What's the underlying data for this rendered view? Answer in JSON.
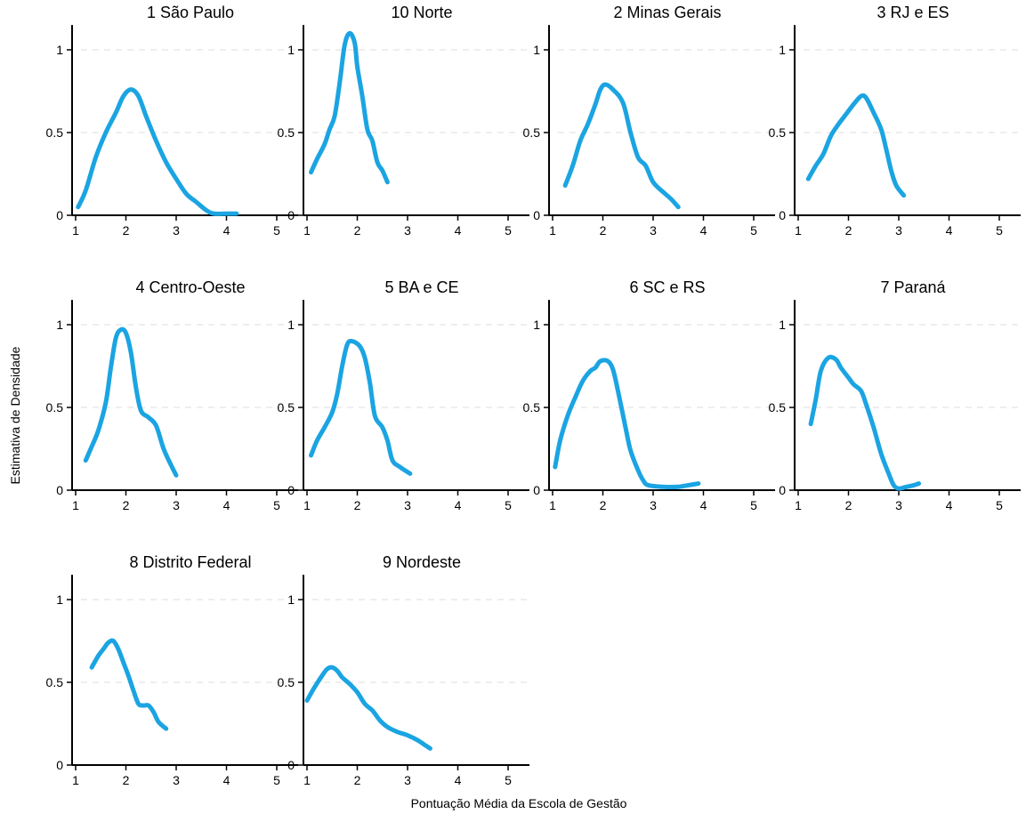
{
  "chart_data": {
    "type": "line",
    "title": "",
    "xlabel": "Pontuação Média da Escola de Gestão",
    "ylabel": "Estimativa de Densidade",
    "xlim": [
      1,
      5
    ],
    "ylim": [
      0,
      1.15
    ],
    "x_ticks": [
      "1",
      "2",
      "3",
      "4",
      "5"
    ],
    "y_ticks": [
      {
        "value": 0,
        "label": "0"
      },
      {
        "value": 0.5,
        "label": "0.5"
      },
      {
        "value": 1,
        "label": "1"
      }
    ],
    "grid": "horizontal dashed at 0.5 and 1",
    "line_color": "#1ba4e2",
    "layout": "facet grid, 4 columns, 3 rows",
    "panels": [
      {
        "title": "1 São Paulo",
        "points": [
          [
            1.05,
            0.05
          ],
          [
            1.2,
            0.15
          ],
          [
            1.4,
            0.35
          ],
          [
            1.6,
            0.5
          ],
          [
            1.8,
            0.62
          ],
          [
            1.95,
            0.72
          ],
          [
            2.1,
            0.76
          ],
          [
            2.25,
            0.72
          ],
          [
            2.4,
            0.6
          ],
          [
            2.6,
            0.45
          ],
          [
            2.8,
            0.32
          ],
          [
            3.0,
            0.22
          ],
          [
            3.2,
            0.13
          ],
          [
            3.4,
            0.08
          ],
          [
            3.6,
            0.03
          ],
          [
            3.75,
            0.01
          ],
          [
            4.0,
            0.01
          ],
          [
            4.2,
            0.01
          ]
        ]
      },
      {
        "title": "10 Norte",
        "points": [
          [
            1.08,
            0.26
          ],
          [
            1.2,
            0.34
          ],
          [
            1.35,
            0.43
          ],
          [
            1.45,
            0.52
          ],
          [
            1.55,
            0.6
          ],
          [
            1.65,
            0.8
          ],
          [
            1.75,
            1.03
          ],
          [
            1.85,
            1.1
          ],
          [
            1.95,
            1.04
          ],
          [
            2.0,
            0.9
          ],
          [
            2.1,
            0.72
          ],
          [
            2.2,
            0.52
          ],
          [
            2.3,
            0.45
          ],
          [
            2.4,
            0.32
          ],
          [
            2.5,
            0.27
          ],
          [
            2.6,
            0.2
          ]
        ]
      },
      {
        "title": "2 Minas Gerais",
        "points": [
          [
            1.25,
            0.18
          ],
          [
            1.4,
            0.3
          ],
          [
            1.55,
            0.45
          ],
          [
            1.7,
            0.55
          ],
          [
            1.85,
            0.67
          ],
          [
            1.95,
            0.76
          ],
          [
            2.05,
            0.79
          ],
          [
            2.2,
            0.76
          ],
          [
            2.4,
            0.68
          ],
          [
            2.55,
            0.5
          ],
          [
            2.7,
            0.35
          ],
          [
            2.85,
            0.3
          ],
          [
            3.0,
            0.2
          ],
          [
            3.2,
            0.14
          ],
          [
            3.35,
            0.1
          ],
          [
            3.5,
            0.05
          ]
        ]
      },
      {
        "title": "3 RJ e ES",
        "points": [
          [
            1.2,
            0.22
          ],
          [
            1.35,
            0.3
          ],
          [
            1.5,
            0.37
          ],
          [
            1.65,
            0.48
          ],
          [
            1.8,
            0.55
          ],
          [
            1.95,
            0.61
          ],
          [
            2.1,
            0.67
          ],
          [
            2.25,
            0.72
          ],
          [
            2.35,
            0.71
          ],
          [
            2.5,
            0.62
          ],
          [
            2.65,
            0.52
          ],
          [
            2.75,
            0.4
          ],
          [
            2.85,
            0.27
          ],
          [
            2.95,
            0.18
          ],
          [
            3.1,
            0.12
          ]
        ]
      },
      {
        "title": "4 Centro-Oeste",
        "points": [
          [
            1.2,
            0.18
          ],
          [
            1.3,
            0.25
          ],
          [
            1.45,
            0.36
          ],
          [
            1.6,
            0.53
          ],
          [
            1.7,
            0.74
          ],
          [
            1.8,
            0.92
          ],
          [
            1.9,
            0.97
          ],
          [
            2.0,
            0.95
          ],
          [
            2.1,
            0.83
          ],
          [
            2.2,
            0.62
          ],
          [
            2.3,
            0.48
          ],
          [
            2.45,
            0.44
          ],
          [
            2.6,
            0.39
          ],
          [
            2.75,
            0.25
          ],
          [
            2.9,
            0.15
          ],
          [
            3.0,
            0.09
          ]
        ]
      },
      {
        "title": "5 BA e CE",
        "points": [
          [
            1.08,
            0.21
          ],
          [
            1.2,
            0.3
          ],
          [
            1.35,
            0.38
          ],
          [
            1.5,
            0.47
          ],
          [
            1.6,
            0.58
          ],
          [
            1.7,
            0.75
          ],
          [
            1.8,
            0.88
          ],
          [
            1.9,
            0.9
          ],
          [
            2.05,
            0.87
          ],
          [
            2.15,
            0.8
          ],
          [
            2.25,
            0.65
          ],
          [
            2.35,
            0.45
          ],
          [
            2.5,
            0.38
          ],
          [
            2.6,
            0.3
          ],
          [
            2.7,
            0.18
          ],
          [
            2.85,
            0.14
          ],
          [
            3.05,
            0.1
          ]
        ]
      },
      {
        "title": "6 SC e RS",
        "points": [
          [
            1.05,
            0.14
          ],
          [
            1.15,
            0.3
          ],
          [
            1.3,
            0.45
          ],
          [
            1.45,
            0.56
          ],
          [
            1.6,
            0.66
          ],
          [
            1.75,
            0.72
          ],
          [
            1.85,
            0.74
          ],
          [
            1.95,
            0.78
          ],
          [
            2.1,
            0.78
          ],
          [
            2.2,
            0.73
          ],
          [
            2.3,
            0.6
          ],
          [
            2.45,
            0.38
          ],
          [
            2.55,
            0.24
          ],
          [
            2.7,
            0.12
          ],
          [
            2.8,
            0.06
          ],
          [
            2.9,
            0.03
          ],
          [
            3.2,
            0.02
          ],
          [
            3.5,
            0.02
          ],
          [
            3.7,
            0.03
          ],
          [
            3.9,
            0.04
          ]
        ]
      },
      {
        "title": "7 Paraná",
        "points": [
          [
            1.25,
            0.4
          ],
          [
            1.35,
            0.55
          ],
          [
            1.45,
            0.72
          ],
          [
            1.6,
            0.8
          ],
          [
            1.75,
            0.79
          ],
          [
            1.85,
            0.74
          ],
          [
            2.0,
            0.68
          ],
          [
            2.1,
            0.64
          ],
          [
            2.25,
            0.6
          ],
          [
            2.35,
            0.52
          ],
          [
            2.5,
            0.38
          ],
          [
            2.65,
            0.22
          ],
          [
            2.8,
            0.1
          ],
          [
            2.9,
            0.03
          ],
          [
            3.0,
            0.01
          ],
          [
            3.15,
            0.02
          ],
          [
            3.3,
            0.03
          ],
          [
            3.4,
            0.04
          ]
        ]
      },
      {
        "title": "8 Distrito Federal",
        "points": [
          [
            1.32,
            0.59
          ],
          [
            1.45,
            0.66
          ],
          [
            1.55,
            0.7
          ],
          [
            1.65,
            0.74
          ],
          [
            1.75,
            0.75
          ],
          [
            1.85,
            0.7
          ],
          [
            1.95,
            0.62
          ],
          [
            2.05,
            0.54
          ],
          [
            2.15,
            0.45
          ],
          [
            2.25,
            0.37
          ],
          [
            2.35,
            0.36
          ],
          [
            2.45,
            0.36
          ],
          [
            2.55,
            0.32
          ],
          [
            2.65,
            0.26
          ],
          [
            2.8,
            0.22
          ]
        ]
      },
      {
        "title": "9 Nordeste",
        "points": [
          [
            1.0,
            0.39
          ],
          [
            1.15,
            0.47
          ],
          [
            1.3,
            0.54
          ],
          [
            1.4,
            0.58
          ],
          [
            1.5,
            0.59
          ],
          [
            1.6,
            0.57
          ],
          [
            1.7,
            0.53
          ],
          [
            1.85,
            0.49
          ],
          [
            2.0,
            0.44
          ],
          [
            2.15,
            0.37
          ],
          [
            2.3,
            0.33
          ],
          [
            2.45,
            0.27
          ],
          [
            2.6,
            0.23
          ],
          [
            2.8,
            0.2
          ],
          [
            3.0,
            0.18
          ],
          [
            3.2,
            0.15
          ],
          [
            3.35,
            0.12
          ],
          [
            3.45,
            0.1
          ]
        ]
      }
    ]
  }
}
